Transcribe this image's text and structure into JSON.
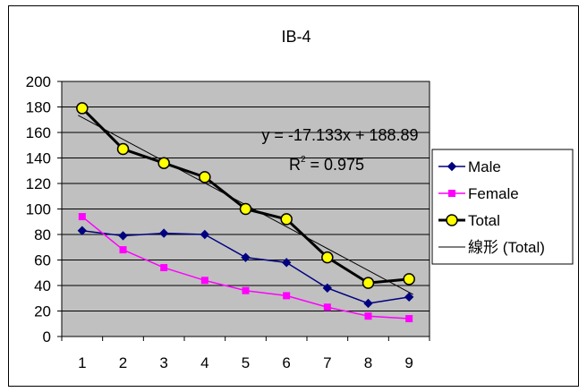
{
  "chart_data": {
    "type": "line",
    "title": "IB-4",
    "categories": [
      "1",
      "2",
      "3",
      "4",
      "5",
      "6",
      "7",
      "8",
      "9"
    ],
    "x": [
      1,
      2,
      3,
      4,
      5,
      6,
      7,
      8,
      9
    ],
    "ylim": [
      0,
      200
    ],
    "yticks": [
      0,
      20,
      40,
      60,
      80,
      100,
      120,
      140,
      160,
      180,
      200
    ],
    "grid": true,
    "legend_position": "right",
    "series": [
      {
        "name": "Male",
        "values": [
          83,
          79,
          81,
          80,
          62,
          58,
          38,
          26,
          31
        ],
        "color": "#000080",
        "marker": "diamond"
      },
      {
        "name": "Female",
        "values": [
          94,
          68,
          54,
          44,
          36,
          32,
          23,
          16,
          14
        ],
        "color": "#FF00FF",
        "marker": "square"
      },
      {
        "name": "Total",
        "values": [
          179,
          147,
          136,
          125,
          100,
          92,
          62,
          42,
          45
        ],
        "color": "#000000",
        "marker": "circle",
        "marker_fill": "#FFFF00"
      }
    ],
    "trendline": {
      "name": "線形 (Total)",
      "slope": -17.133,
      "intercept": 188.89,
      "equation_label": "y = -17.133x + 188.89",
      "r2_prefix": "R",
      "r2_sup": "2",
      "r2_suffix": " = 0.975",
      "color": "#000000"
    }
  },
  "colors": {
    "plot_background": "#C0C0C0",
    "gridline": "#000000",
    "frame": "#000000"
  }
}
